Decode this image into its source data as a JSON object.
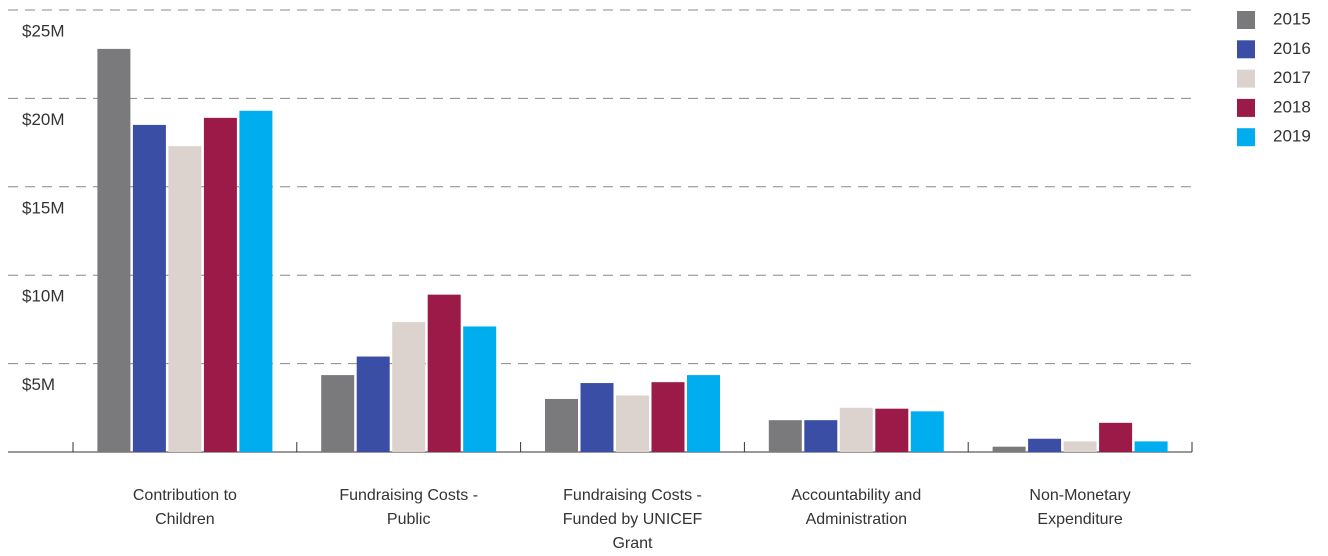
{
  "chart_data": {
    "type": "bar",
    "categories": [
      "Contribution to Children",
      "Fundraising Costs - Public",
      "Fundraising Costs - Funded by UNICEF Grant",
      "Accountability and Administration",
      "Non-Monetary Expenditure"
    ],
    "series": [
      {
        "name": "2015",
        "color": "#7a7a7c",
        "values": [
          22.8,
          4.35,
          3.0,
          1.8,
          0.3
        ]
      },
      {
        "name": "2016",
        "color": "#3a4ea5",
        "values": [
          18.5,
          5.4,
          3.9,
          1.8,
          0.75
        ]
      },
      {
        "name": "2017",
        "color": "#dcd3ce",
        "values": [
          17.3,
          7.35,
          3.2,
          2.5,
          0.6
        ]
      },
      {
        "name": "2018",
        "color": "#9b1a48",
        "values": [
          18.9,
          8.9,
          3.95,
          2.45,
          1.65
        ]
      },
      {
        "name": "2019",
        "color": "#00adee",
        "values": [
          19.3,
          7.1,
          4.35,
          2.3,
          0.6
        ]
      }
    ],
    "ylim": [
      0,
      25
    ],
    "yticks": [
      {
        "value": 5,
        "label": "$5M"
      },
      {
        "value": 10,
        "label": "$10M"
      },
      {
        "value": 15,
        "label": "$15M"
      },
      {
        "value": 20,
        "label": "$20M"
      },
      {
        "value": 25,
        "label": "$25M"
      }
    ],
    "grid": true,
    "grid_style": "dashed",
    "legend": "right"
  }
}
